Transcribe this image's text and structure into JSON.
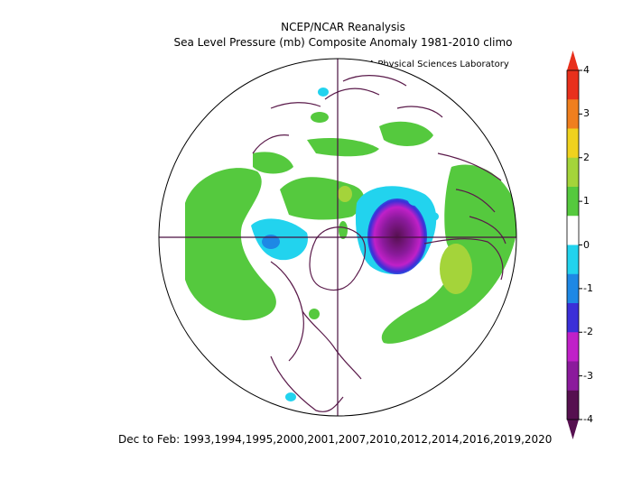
{
  "header": {
    "title": "NCEP/NCAR Reanalysis",
    "subtitle": "Sea Level Pressure (mb) Composite Anomaly 1981-2010 climo",
    "credit": "NOAA Physical Sciences Laboratory"
  },
  "footer": {
    "period": "Dec to Feb: 1993,1994,1995,2000,2001,2007,2010,2012,2014,2016,2019,2020"
  },
  "colorbar": {
    "ticks": [
      "4",
      "3",
      "2",
      "1",
      "0",
      "-1",
      "-2",
      "-3",
      "-4"
    ],
    "colors": [
      "#e8301c",
      "#f07f1e",
      "#f0d21e",
      "#a4d43a",
      "#55c93e",
      "#ffffff",
      "#22d3ee",
      "#1e88e5",
      "#3b2fd8",
      "#c020c8",
      "#8b1a9c",
      "#561050"
    ]
  }
}
